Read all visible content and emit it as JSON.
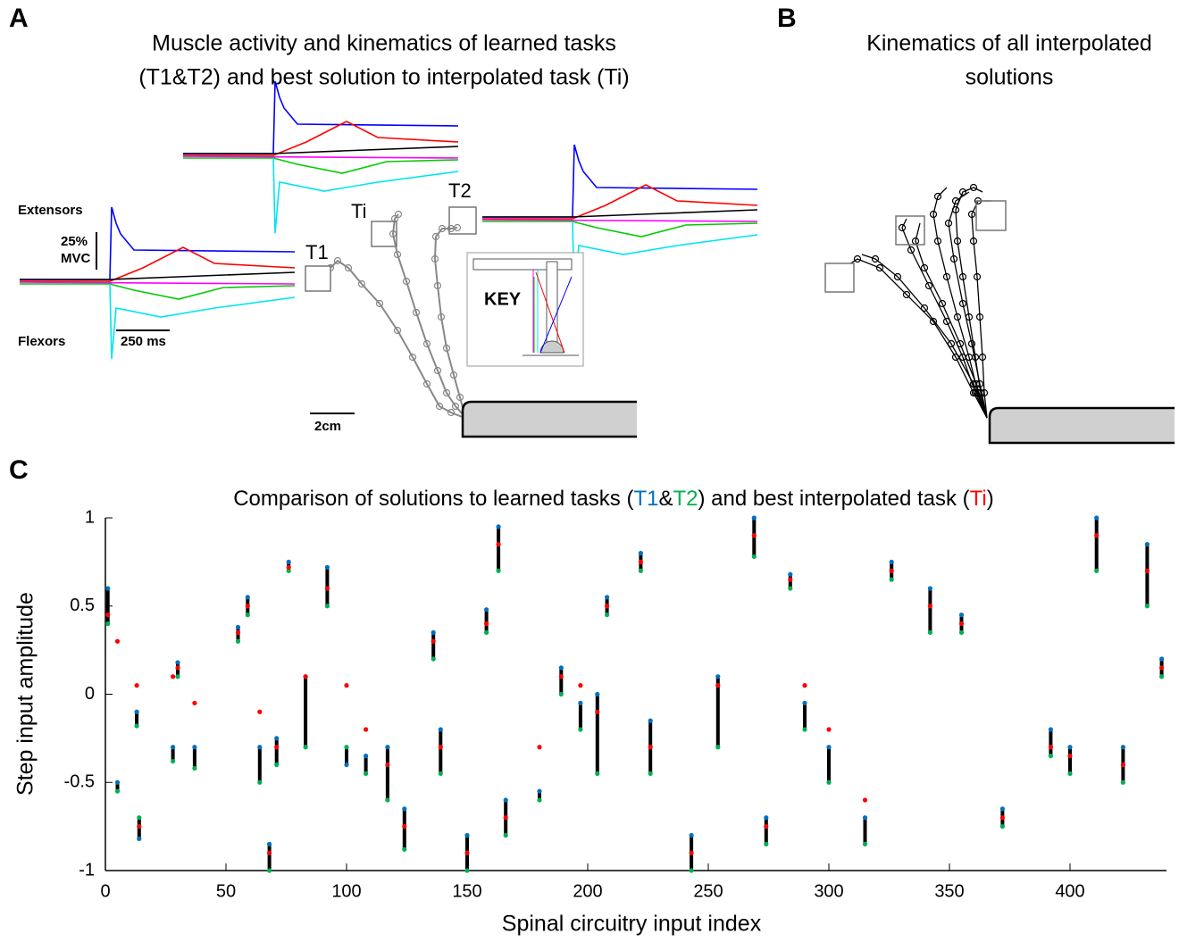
{
  "panels": {
    "a": {
      "letter": "A",
      "title": [
        "Muscle activity and kinematics of learned tasks",
        "(T1&T2) and best solution to interpolated task (Ti)"
      ],
      "extensors": "Extensors",
      "flexors": "Flexors",
      "scale_emg": [
        "25%",
        "MVC"
      ],
      "scale_time": "250 ms",
      "scale_length": "2cm",
      "targets": [
        "T1",
        "Ti",
        "T2"
      ],
      "key": "KEY"
    },
    "b": {
      "letter": "B",
      "title": [
        "Kinematics of all interpolated",
        "solutions"
      ]
    },
    "c": {
      "letter": "C"
    }
  },
  "chart_data": {
    "type": "range-dots",
    "title_parts": [
      "Comparison of solutions to learned tasks (",
      "&",
      ") and best interpolated task (",
      ")"
    ],
    "xlabel": "Spinal circuitry input index",
    "ylabel": "Step input amplitude",
    "xlim": [
      0,
      440
    ],
    "ylim": [
      -1,
      1
    ],
    "xticks": [
      0,
      50,
      100,
      150,
      200,
      250,
      300,
      350,
      400
    ],
    "yticks": [
      -1,
      -0.5,
      0,
      0.5,
      1
    ],
    "range_color": "#000000",
    "x": [
      1,
      5,
      13,
      14,
      28,
      30,
      37,
      55,
      59,
      64,
      68,
      71,
      76,
      83,
      92,
      100,
      108,
      117,
      124,
      136,
      139,
      150,
      158,
      163,
      166,
      180,
      189,
      197,
      204,
      208,
      222,
      226,
      243,
      254,
      269,
      274,
      284,
      290,
      300,
      315,
      326,
      342,
      355,
      372,
      392,
      400,
      411,
      422,
      432,
      438
    ],
    "series": [
      {
        "name": "T1",
        "color": "#0070c0",
        "values": [
          0.6,
          -0.5,
          -0.1,
          -0.82,
          -0.3,
          0.18,
          -0.3,
          0.38,
          0.55,
          -0.3,
          -0.85,
          -0.25,
          0.75,
          0.1,
          0.72,
          -0.4,
          -0.35,
          -0.3,
          -0.65,
          0.35,
          -0.2,
          -0.8,
          0.48,
          0.95,
          -0.6,
          -0.55,
          0.15,
          -0.05,
          0,
          0.55,
          0.8,
          -0.15,
          -0.8,
          0.1,
          1,
          -0.7,
          0.68,
          -0.05,
          -0.3,
          -0.7,
          0.75,
          0.6,
          0.45,
          -0.65,
          -0.2,
          -0.3,
          1,
          -0.3,
          0.85,
          0.2
        ]
      },
      {
        "name": "T2",
        "color": "#00b050",
        "values": [
          0.4,
          -0.55,
          -0.18,
          -0.7,
          -0.38,
          0.1,
          -0.42,
          0.3,
          0.45,
          -0.5,
          -1,
          -0.4,
          0.7,
          -0.3,
          0.5,
          -0.3,
          -0.45,
          -0.6,
          -0.88,
          0.2,
          -0.45,
          -1,
          0.35,
          0.7,
          -0.8,
          -0.6,
          0,
          -0.2,
          -0.45,
          0.45,
          0.7,
          -0.45,
          -1,
          -0.3,
          0.78,
          -0.85,
          0.6,
          -0.2,
          -0.5,
          -0.85,
          0.65,
          0.35,
          0.35,
          -0.75,
          -0.35,
          -0.45,
          0.7,
          -0.5,
          0.5,
          0.1
        ]
      },
      {
        "name": "Ti",
        "color": "#ff0000",
        "values": [
          0.45,
          0.3,
          0.05,
          -0.75,
          0.1,
          0.15,
          -0.05,
          0.35,
          0.5,
          -0.1,
          -0.9,
          -0.3,
          0.72,
          0.1,
          0.6,
          0.05,
          -0.2,
          -0.4,
          -0.75,
          0.3,
          -0.3,
          -0.9,
          0.4,
          0.85,
          -0.7,
          -0.3,
          0.1,
          0.05,
          -0.1,
          0.5,
          0.75,
          -0.3,
          -0.9,
          0.05,
          0.9,
          -0.75,
          0.65,
          0.05,
          -0.2,
          -0.6,
          0.7,
          0.5,
          0.4,
          -0.7,
          -0.3,
          -0.35,
          0.9,
          -0.4,
          0.7,
          0.15
        ]
      }
    ]
  }
}
